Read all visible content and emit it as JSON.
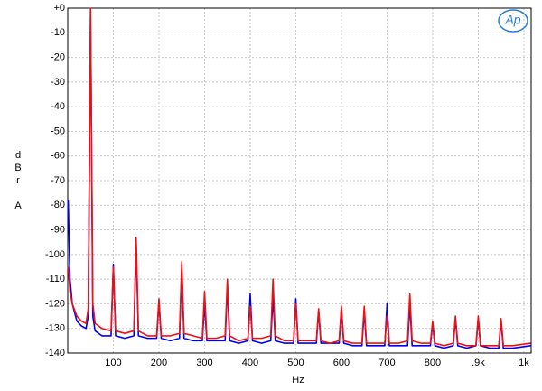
{
  "logo": "Ap",
  "chart_data": {
    "type": "line",
    "xlabel": "Hz",
    "ylabel": "dBr A",
    "xlim": [
      0,
      1016
    ],
    "ylim": [
      -140,
      0
    ],
    "xticks": [
      100,
      200,
      300,
      400,
      500,
      600,
      700,
      800,
      {
        "value": 900,
        "label": ".9k"
      },
      {
        "value": 1000,
        "label": "1k"
      }
    ],
    "yticks": [
      {
        "value": 0,
        "label": "+0"
      },
      -10,
      -20,
      -30,
      -40,
      -50,
      -60,
      -70,
      -80,
      -90,
      -100,
      -110,
      -120,
      -130,
      -140
    ],
    "grid": true,
    "x": [
      1,
      5,
      10,
      20,
      30,
      40,
      45,
      50,
      55,
      60,
      75,
      95,
      100,
      105,
      125,
      145,
      150,
      155,
      175,
      195,
      200,
      205,
      225,
      245,
      250,
      255,
      275,
      295,
      300,
      305,
      325,
      345,
      350,
      355,
      375,
      395,
      400,
      405,
      425,
      445,
      450,
      455,
      475,
      495,
      500,
      505,
      525,
      545,
      550,
      555,
      575,
      595,
      600,
      605,
      625,
      645,
      650,
      655,
      675,
      695,
      700,
      705,
      725,
      745,
      750,
      755,
      775,
      795,
      800,
      805,
      825,
      845,
      850,
      855,
      875,
      895,
      900,
      905,
      925,
      945,
      950,
      955,
      975,
      1015
    ],
    "series": [
      {
        "color": "#0000ee",
        "values": [
          -78,
          -110,
          -120,
          -127,
          -129,
          -130,
          -125,
          -1,
          -125,
          -131,
          -133,
          -133,
          -104,
          -133,
          -134,
          -133,
          -96,
          -133,
          -134,
          -134,
          -119,
          -134,
          -135,
          -134,
          -106,
          -134,
          -135,
          -135,
          -120,
          -135,
          -135,
          -135,
          -113,
          -135,
          -136,
          -135,
          -116,
          -135,
          -136,
          -135,
          -117,
          -135,
          -136,
          -136,
          -118,
          -136,
          -136,
          -136,
          -123,
          -136,
          -136,
          -136,
          -122,
          -136,
          -137,
          -137,
          -123,
          -137,
          -137,
          -137,
          -120,
          -137,
          -137,
          -137,
          -120,
          -137,
          -137,
          -137,
          -128,
          -137,
          -138,
          -137,
          -126,
          -137,
          -138,
          -137,
          -126,
          -137,
          -138,
          -138,
          -127,
          -138,
          -138,
          -137
        ]
      },
      {
        "color": "#ee1111",
        "values": [
          -105,
          -115,
          -120,
          -125,
          -127,
          -128,
          -122,
          0,
          -120,
          -128,
          -130,
          -131,
          -105,
          -131,
          -132,
          -131,
          -93,
          -131,
          -133,
          -133,
          -118,
          -133,
          -133,
          -132,
          -103,
          -132,
          -133,
          -134,
          -115,
          -134,
          -134,
          -133,
          -110,
          -133,
          -135,
          -134,
          -121,
          -134,
          -134,
          -133,
          -110,
          -133,
          -135,
          -135,
          -120,
          -135,
          -135,
          -135,
          -122,
          -135,
          -136,
          -135,
          -121,
          -135,
          -136,
          -136,
          -121,
          -136,
          -136,
          -136,
          -125,
          -136,
          -136,
          -135,
          -116,
          -135,
          -136,
          -136,
          -127,
          -136,
          -137,
          -136,
          -125,
          -136,
          -137,
          -137,
          -125,
          -137,
          -137,
          -137,
          -126,
          -137,
          -137,
          -136
        ]
      }
    ]
  }
}
